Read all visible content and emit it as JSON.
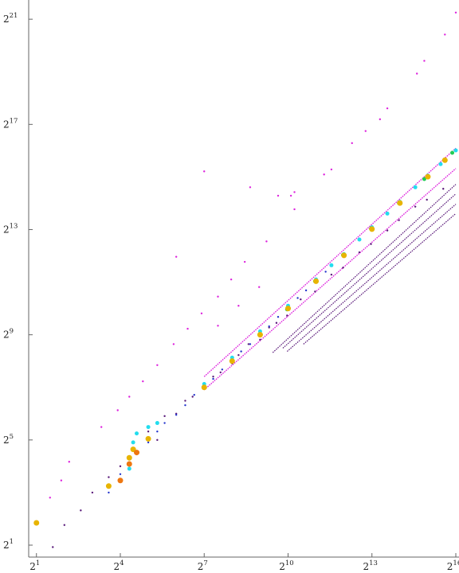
{
  "chart_data": {
    "type": "scatter",
    "title": "",
    "xlabel": "",
    "ylabel": "",
    "x_scale": "log2",
    "y_scale": "log2",
    "x_ticks": [
      {
        "base": "2",
        "exp": "1",
        "value": 2
      },
      {
        "base": "2",
        "exp": "4",
        "value": 16
      },
      {
        "base": "2",
        "exp": "7",
        "value": 128
      },
      {
        "base": "2",
        "exp": "10",
        "value": 1024
      },
      {
        "base": "2",
        "exp": "13",
        "value": 8192
      },
      {
        "base": "2",
        "exp": "16",
        "value": 65536
      }
    ],
    "y_ticks": [
      {
        "base": "2",
        "exp": "1",
        "value": 2
      },
      {
        "base": "2",
        "exp": "5",
        "value": 32
      },
      {
        "base": "2",
        "exp": "9",
        "value": 512
      },
      {
        "base": "2",
        "exp": "13",
        "value": 8192
      },
      {
        "base": "2",
        "exp": "17",
        "value": 131072
      },
      {
        "base": "2",
        "exp": "21",
        "value": 2097152
      }
    ],
    "xlim": [
      1.65,
      65536
    ],
    "ylim": [
      1.46,
      3200000
    ],
    "grid": false,
    "legend": "none",
    "series": [
      {
        "color": "#dd22dd",
        "points": [
          [
            2.8,
            7.0
          ],
          [
            3.7,
            11
          ],
          [
            4.5,
            18
          ],
          [
            10,
            45
          ],
          [
            15,
            70
          ],
          [
            20,
            100
          ],
          [
            28,
            150
          ],
          [
            40,
            230
          ],
          [
            60,
            400
          ],
          [
            85,
            600
          ],
          [
            120,
            900
          ],
          [
            180,
            1400
          ],
          [
            250,
            2200
          ],
          [
            350,
            3500
          ],
          [
            600,
            6000
          ],
          [
            1200,
            14000
          ],
          [
            2500,
            35000
          ],
          [
            5000,
            80000
          ],
          [
            10000,
            150000
          ],
          [
            25000,
            500000
          ],
          [
            65536,
            2500000
          ],
          [
            50000,
            1400000
          ],
          [
            30000,
            700000
          ],
          [
            12000,
            200000
          ],
          [
            7000,
            110000
          ],
          [
            128,
            38000
          ],
          [
            400,
            25000
          ],
          [
            800,
            20000
          ],
          [
            1100,
            20000
          ],
          [
            1200,
            22000
          ],
          [
            3000,
            40000
          ],
          [
            64,
            4000
          ],
          [
            180,
            650
          ],
          [
            300,
            1100
          ],
          [
            500,
            1800
          ]
        ]
      },
      {
        "color": "#dd22dd",
        "line": [
          [
            128,
            170
          ],
          [
            65536,
            70000
          ]
        ],
        "weight": 1.4
      },
      {
        "color": "#dd22dd",
        "line": [
          [
            128,
            120
          ],
          [
            65536,
            41000
          ]
        ],
        "weight": 1.4
      },
      {
        "color": "#5a1a7a",
        "line": [
          [
            700,
            320
          ],
          [
            65536,
            27000
          ]
        ],
        "weight": 1.2
      },
      {
        "color": "#5a1a7a",
        "line": [
          [
            900,
            360
          ],
          [
            65536,
            21000
          ]
        ],
        "weight": 1.2
      },
      {
        "color": "#5a1a7a",
        "line": [
          [
            1000,
            330
          ],
          [
            65536,
            16000
          ]
        ],
        "weight": 1.2
      },
      {
        "color": "#5a1a7a",
        "line": [
          [
            1500,
            400
          ],
          [
            65536,
            12500
          ]
        ],
        "weight": 1.2
      },
      {
        "color": "#5a1a7a",
        "points": [
          [
            3,
            1.9
          ],
          [
            4,
            3.4
          ],
          [
            6,
            5
          ],
          [
            8,
            8
          ],
          [
            12,
            12
          ],
          [
            16,
            16
          ],
          [
            20,
            20
          ],
          [
            24,
            24
          ],
          [
            32,
            40
          ],
          [
            40,
            32
          ],
          [
            48,
            60
          ],
          [
            64,
            64
          ],
          [
            80,
            90
          ],
          [
            96,
            100
          ],
          [
            128,
            128
          ],
          [
            160,
            170
          ],
          [
            192,
            190
          ],
          [
            256,
            240
          ],
          [
            300,
            300
          ],
          [
            384,
            400
          ],
          [
            512,
            450
          ],
          [
            640,
            620
          ],
          [
            768,
            700
          ],
          [
            1000,
            850
          ],
          [
            1400,
            1300
          ],
          [
            2000,
            1600
          ],
          [
            3000,
            2500
          ],
          [
            4000,
            3000
          ],
          [
            6000,
            4500
          ],
          [
            8000,
            5600
          ],
          [
            12000,
            8000
          ],
          [
            16000,
            10500
          ],
          [
            24000,
            15000
          ],
          [
            32000,
            18000
          ],
          [
            48000,
            24000
          ]
        ]
      },
      {
        "color": "#2233cc",
        "points": [
          [
            12,
            8
          ],
          [
            16,
            13
          ],
          [
            24,
            22
          ],
          [
            32,
            30
          ],
          [
            40,
            40
          ],
          [
            48,
            50
          ],
          [
            64,
            62
          ],
          [
            80,
            80
          ],
          [
            100,
            105
          ],
          [
            128,
            128
          ],
          [
            160,
            160
          ],
          [
            200,
            205
          ],
          [
            256,
            260
          ],
          [
            320,
            330
          ],
          [
            400,
            400
          ],
          [
            512,
            520
          ],
          [
            640,
            640
          ],
          [
            800,
            820
          ],
          [
            1024,
            1050
          ],
          [
            1300,
            1350
          ],
          [
            1600,
            1650
          ],
          [
            2048,
            2100
          ],
          [
            2600,
            2700
          ]
        ]
      },
      {
        "color": "#22ddee",
        "points": [
          [
            20,
            15
          ],
          [
            22,
            30
          ],
          [
            24,
            38
          ],
          [
            32,
            45
          ],
          [
            40,
            50
          ],
          [
            128,
            140
          ],
          [
            256,
            280
          ],
          [
            512,
            560
          ],
          [
            1024,
            1100
          ],
          [
            2048,
            2200
          ],
          [
            3000,
            3200
          ],
          [
            4096,
            4300
          ],
          [
            6000,
            6300
          ],
          [
            8192,
            8700
          ],
          [
            12000,
            12500
          ],
          [
            16384,
            17000
          ],
          [
            24000,
            25000
          ],
          [
            32768,
            34000
          ],
          [
            45000,
            46000
          ],
          [
            65536,
            66000
          ]
        ]
      },
      {
        "color": "#22cc55",
        "points": [
          [
            1000,
            1000
          ],
          [
            2000,
            2100
          ],
          [
            4000,
            4200
          ],
          [
            8000,
            8400
          ],
          [
            16000,
            16500
          ],
          [
            30000,
            31000
          ],
          [
            60000,
            62000
          ]
        ]
      },
      {
        "color": "#e8b400",
        "points": [
          [
            2,
            3.6
          ],
          [
            12,
            9.5
          ],
          [
            20,
            20
          ],
          [
            22,
            25
          ],
          [
            32,
            33
          ],
          [
            128,
            128
          ],
          [
            256,
            256
          ],
          [
            512,
            512
          ],
          [
            1024,
            1024
          ],
          [
            2048,
            2100
          ],
          [
            4096,
            4150
          ],
          [
            8192,
            8300
          ],
          [
            16384,
            16500
          ],
          [
            32768,
            33000
          ],
          [
            50000,
            51000
          ]
        ]
      },
      {
        "color": "#ee7711",
        "points": [
          [
            16,
            11
          ],
          [
            20,
            17
          ],
          [
            24,
            23
          ]
        ]
      }
    ]
  }
}
